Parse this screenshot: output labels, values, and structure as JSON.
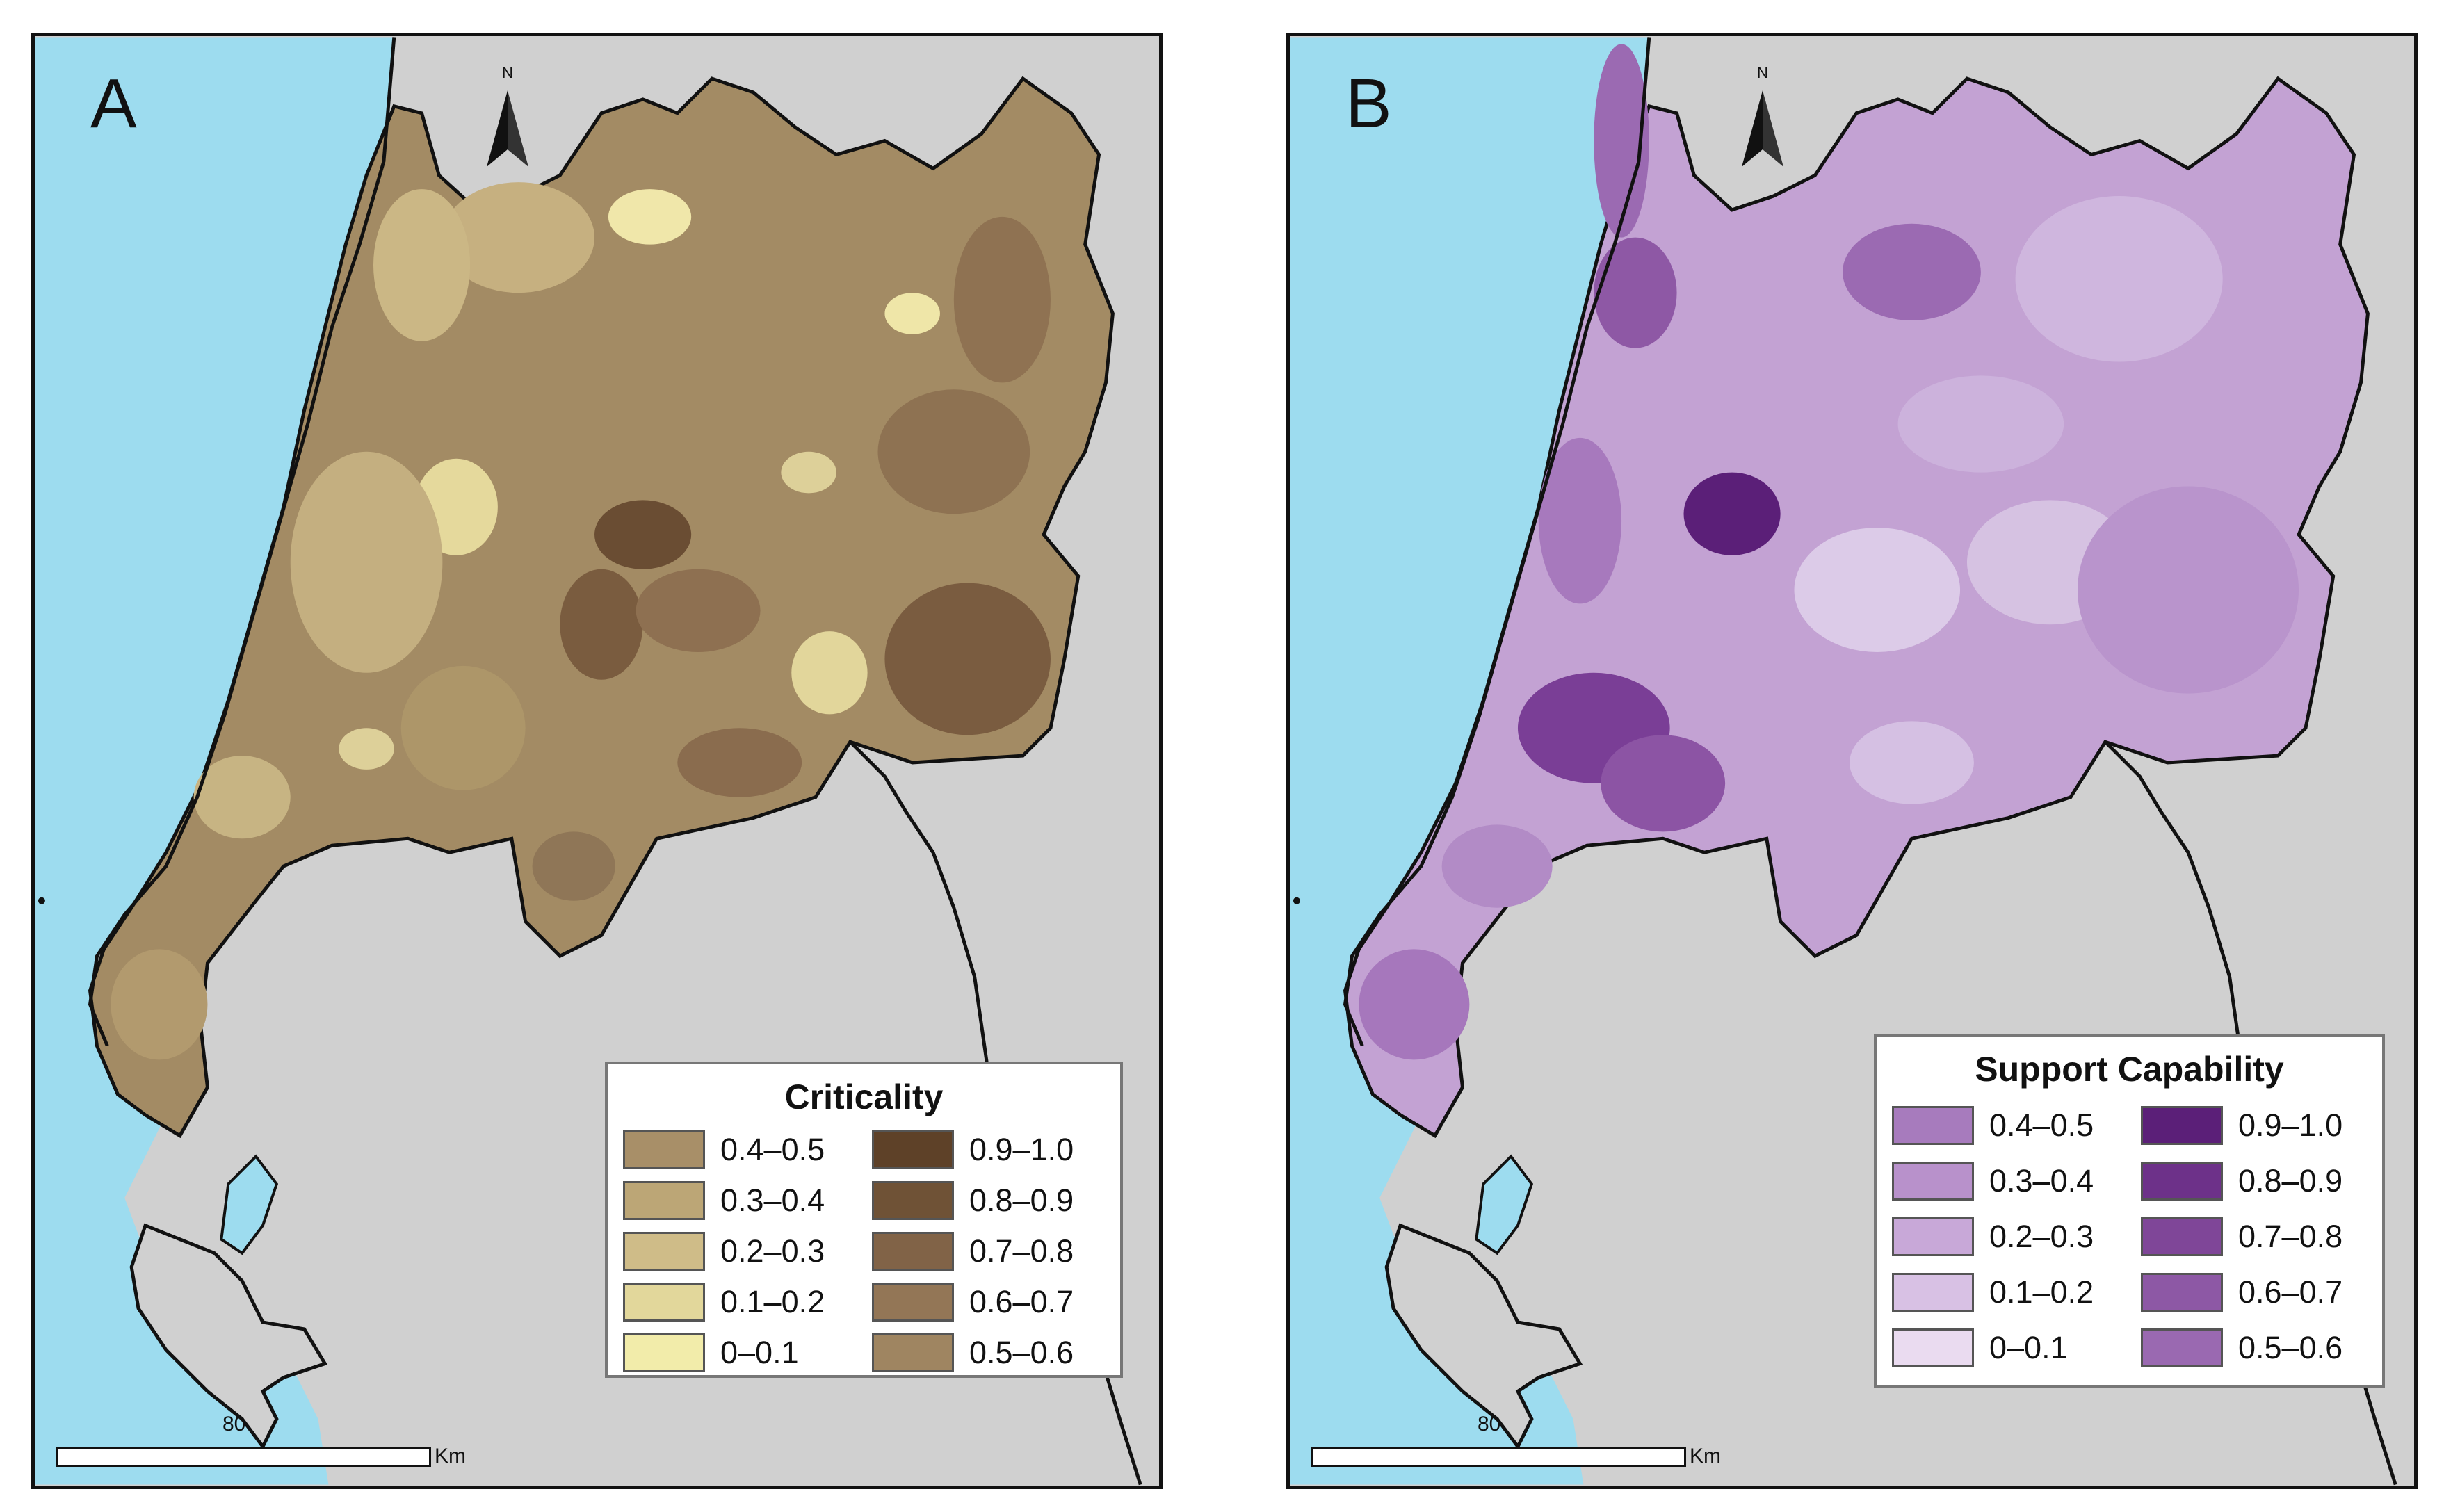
{
  "panels": [
    {
      "letter": "A",
      "north": "N",
      "legend": {
        "title": "Criticality",
        "left_items": [
          {
            "label": "0.4–0.5",
            "color": "#a88f68"
          },
          {
            "label": "0.3–0.4",
            "color": "#bca676"
          },
          {
            "label": "0.2–0.3",
            "color": "#cfbc88"
          },
          {
            "label": "0.1–0.2",
            "color": "#e2d79b"
          },
          {
            "label": "0–0.1",
            "color": "#f2ecaa"
          }
        ],
        "right_items": [
          {
            "label": "0.9–1.0",
            "color": "#5e4128"
          },
          {
            "label": "0.8–0.9",
            "color": "#6f5236"
          },
          {
            "label": "0.7–0.8",
            "color": "#816347"
          },
          {
            "label": "0.6–0.7",
            "color": "#937656"
          },
          {
            "label": "0.5–0.6",
            "color": "#9f8561"
          }
        ]
      },
      "scale": {
        "value": "80",
        "unit": "Km"
      }
    },
    {
      "letter": "B",
      "north": "N",
      "legend": {
        "title": "Support Capability",
        "left_items": [
          {
            "label": "0.4–0.5",
            "color": "#a77bbd"
          },
          {
            "label": "0.3–0.4",
            "color": "#b891cb"
          },
          {
            "label": "0.2–0.3",
            "color": "#c8a8d8"
          },
          {
            "label": "0.1–0.2",
            "color": "#d8c1e4"
          },
          {
            "label": "0–0.1",
            "color": "#eadbf0"
          }
        ],
        "right_items": [
          {
            "label": "0.9–1.0",
            "color": "#5b1f78"
          },
          {
            "label": "0.8–0.9",
            "color": "#6d3189"
          },
          {
            "label": "0.7–0.8",
            "color": "#7f4698"
          },
          {
            "label": "0.6–0.7",
            "color": "#8d58a5"
          },
          {
            "label": "0.5–0.6",
            "color": "#9a69b1"
          }
        ]
      },
      "scale": {
        "value": "80",
        "unit": "Km"
      }
    }
  ],
  "colors": {
    "sea": "#9ddcef",
    "land": "#d0d0d0",
    "boundary": "#111111"
  }
}
